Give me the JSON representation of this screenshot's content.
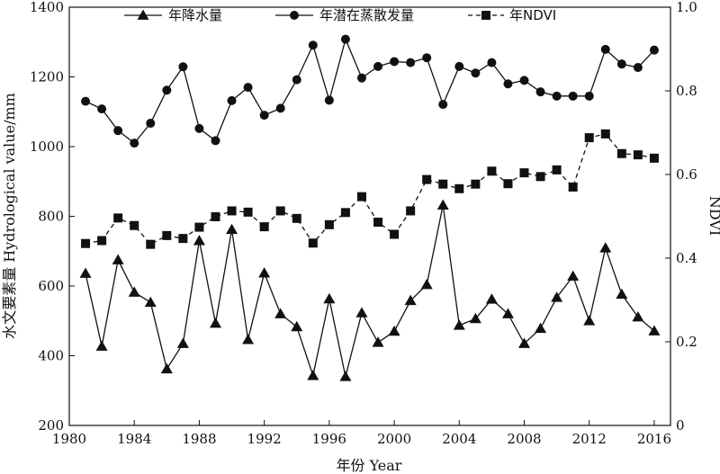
{
  "chart_data": {
    "type": "line",
    "xlabel": "年份 Year",
    "ylabel_left": "水文要素量 Hydrological value/mm",
    "ylabel_right": "NDVI",
    "xlim": [
      1980,
      2017
    ],
    "ylim_left": [
      200,
      1400
    ],
    "ylim_right": [
      0,
      1.0
    ],
    "x_ticks": [
      1980,
      1984,
      1988,
      1992,
      1996,
      2000,
      2004,
      2008,
      2012,
      2016
    ],
    "y_left_ticks": [
      200,
      400,
      600,
      800,
      1000,
      1200,
      1400
    ],
    "y_right_ticks": [
      "0",
      "0.2",
      "0.4",
      "0.6",
      "0.8",
      "1.0"
    ],
    "grid": false,
    "legend_position": "top",
    "x": [
      1981,
      1982,
      1983,
      1984,
      1985,
      1986,
      1987,
      1988,
      1989,
      1990,
      1991,
      1992,
      1993,
      1994,
      1995,
      1996,
      1997,
      1998,
      1999,
      2000,
      2001,
      2002,
      2003,
      2004,
      2005,
      2006,
      2007,
      2008,
      2009,
      2010,
      2011,
      2012,
      2013,
      2014,
      2015,
      2016
    ],
    "series": [
      {
        "name": "年降水量",
        "axis": "left",
        "marker": "triangle",
        "line": "solid",
        "values": [
          636,
          427,
          675,
          582,
          553,
          362,
          435,
          730,
          493,
          762,
          446,
          637,
          520,
          483,
          343,
          563,
          340,
          523,
          438,
          470,
          558,
          604,
          832,
          487,
          506,
          562,
          520,
          435,
          478,
          567,
          628,
          500,
          709,
          576,
          511,
          471
        ]
      },
      {
        "name": "年潜在蒸散发量",
        "axis": "left",
        "marker": "circle",
        "line": "solid",
        "values": [
          1130,
          1108,
          1046,
          1010,
          1067,
          1162,
          1229,
          1052,
          1017,
          1132,
          1170,
          1090,
          1110,
          1192,
          1291,
          1133,
          1308,
          1197,
          1230,
          1244,
          1241,
          1255,
          1121,
          1230,
          1211,
          1241,
          1180,
          1190,
          1157,
          1145,
          1145,
          1145,
          1279,
          1237,
          1227,
          1277
        ]
      },
      {
        "name": "年NDVI",
        "axis": "right",
        "marker": "square",
        "line": "dashed",
        "values": [
          0.435,
          0.442,
          0.496,
          0.478,
          0.433,
          0.454,
          0.447,
          0.474,
          0.499,
          0.513,
          0.51,
          0.475,
          0.513,
          0.495,
          0.436,
          0.48,
          0.509,
          0.547,
          0.486,
          0.457,
          0.513,
          0.588,
          0.577,
          0.566,
          0.577,
          0.608,
          0.578,
          0.604,
          0.595,
          0.611,
          0.57,
          0.688,
          0.697,
          0.65,
          0.647,
          0.639
        ]
      }
    ]
  }
}
